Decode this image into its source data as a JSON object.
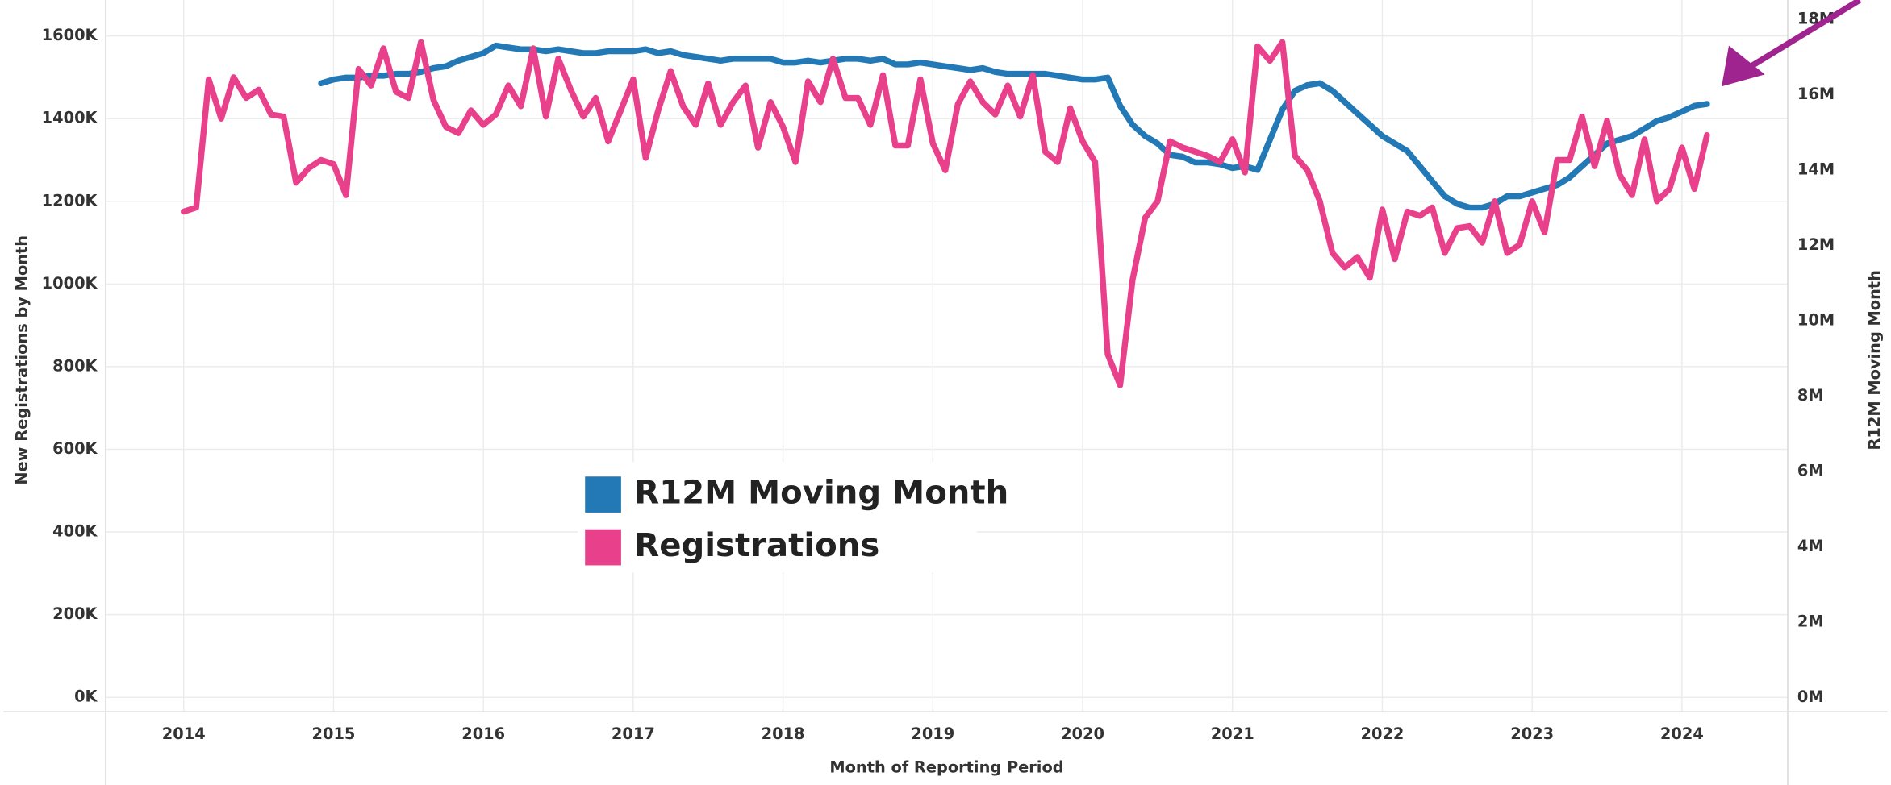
{
  "chart_data": {
    "type": "line",
    "x_label": "Month of Reporting Period",
    "y_label": "New Registrations by Month",
    "y2_label": "R12M Moving Month",
    "xlim": [
      2013.479,
      2024.706
    ],
    "xticks": [
      2014,
      2015,
      2016,
      2017,
      2018,
      2019,
      2020,
      2021,
      2022,
      2023,
      2024
    ],
    "ylim": [
      -35000,
      1687000
    ],
    "yticks": [
      {
        "value": 0,
        "label": "0K"
      },
      {
        "value": 200000,
        "label": "200K"
      },
      {
        "value": 400000,
        "label": "400K"
      },
      {
        "value": 600000,
        "label": "600K"
      },
      {
        "value": 800000,
        "label": "800K"
      },
      {
        "value": 1000000,
        "label": "1000K"
      },
      {
        "value": 1200000,
        "label": "1200K"
      },
      {
        "value": 1400000,
        "label": "1400K"
      },
      {
        "value": 1600000,
        "label": "1600K"
      }
    ],
    "y2lim": [
      -382000,
      18510000
    ],
    "y2ticks": [
      {
        "value": 0,
        "label": "0M"
      },
      {
        "value": 2000000,
        "label": "2M"
      },
      {
        "value": 4000000,
        "label": "4M"
      },
      {
        "value": 6000000,
        "label": "6M"
      },
      {
        "value": 8000000,
        "label": "8M"
      },
      {
        "value": 10000000,
        "label": "10M"
      },
      {
        "value": 12000000,
        "label": "12M"
      },
      {
        "value": 14000000,
        "label": "14M"
      },
      {
        "value": 16000000,
        "label": "16M"
      },
      {
        "value": 18000000,
        "label": "18M"
      }
    ],
    "grid": true,
    "x": [
      2014,
      2014.083,
      2014.167,
      2014.25,
      2014.333,
      2014.417,
      2014.5,
      2014.583,
      2014.667,
      2014.75,
      2014.833,
      2014.917,
      2015,
      2015.083,
      2015.167,
      2015.25,
      2015.333,
      2015.417,
      2015.5,
      2015.583,
      2015.667,
      2015.75,
      2015.833,
      2015.917,
      2016,
      2016.083,
      2016.167,
      2016.25,
      2016.333,
      2016.417,
      2016.5,
      2016.583,
      2016.667,
      2016.75,
      2016.833,
      2016.917,
      2017,
      2017.083,
      2017.167,
      2017.25,
      2017.333,
      2017.417,
      2017.5,
      2017.583,
      2017.667,
      2017.75,
      2017.833,
      2017.917,
      2018,
      2018.083,
      2018.167,
      2018.25,
      2018.333,
      2018.417,
      2018.5,
      2018.583,
      2018.667,
      2018.75,
      2018.833,
      2018.917,
      2019,
      2019.083,
      2019.167,
      2019.25,
      2019.333,
      2019.417,
      2019.5,
      2019.583,
      2019.667,
      2019.75,
      2019.833,
      2019.917,
      2020,
      2020.083,
      2020.167,
      2020.25,
      2020.333,
      2020.417,
      2020.5,
      2020.583,
      2020.667,
      2020.75,
      2020.833,
      2020.917,
      2021,
      2021.083,
      2021.167,
      2021.25,
      2021.333,
      2021.417,
      2021.5,
      2021.583,
      2021.667,
      2021.75,
      2021.833,
      2021.917,
      2022,
      2022.083,
      2022.167,
      2022.25,
      2022.333,
      2022.417,
      2022.5,
      2022.583,
      2022.667,
      2022.75,
      2022.833,
      2022.917,
      2023,
      2023.083,
      2023.167,
      2023.25,
      2023.333,
      2023.417,
      2023.5,
      2023.583,
      2023.667,
      2023.75,
      2023.833,
      2023.917,
      2024,
      2024.083,
      2024.167
    ],
    "series": [
      {
        "name": "R12M Moving Month",
        "color": "#2279b5",
        "axis": "y2",
        "values": [
          null,
          null,
          null,
          null,
          null,
          null,
          null,
          null,
          null,
          null,
          null,
          16300000,
          16400000,
          16450000,
          16450000,
          16500000,
          16500000,
          16550000,
          16550000,
          16600000,
          16700000,
          16750000,
          16900000,
          17000000,
          17100000,
          17300000,
          17250000,
          17200000,
          17200000,
          17150000,
          17200000,
          17150000,
          17100000,
          17100000,
          17150000,
          17150000,
          17150000,
          17200000,
          17100000,
          17150000,
          17050000,
          17000000,
          16950000,
          16900000,
          16950000,
          16950000,
          16950000,
          16950000,
          16850000,
          16850000,
          16900000,
          16850000,
          16900000,
          16950000,
          16950000,
          16900000,
          16950000,
          16800000,
          16800000,
          16850000,
          16800000,
          16750000,
          16700000,
          16650000,
          16700000,
          16600000,
          16550000,
          16550000,
          16550000,
          16550000,
          16500000,
          16450000,
          16400000,
          16400000,
          16450000,
          15700000,
          15200000,
          14900000,
          14700000,
          14400000,
          14350000,
          14200000,
          14200000,
          14150000,
          14050000,
          14100000,
          14000000,
          14800000,
          15600000,
          16100000,
          16250000,
          16300000,
          16100000,
          15800000,
          15500000,
          15200000,
          14900000,
          14700000,
          14500000,
          14100000,
          13700000,
          13300000,
          13100000,
          13000000,
          13000000,
          13100000,
          13300000,
          13300000,
          13400000,
          13500000,
          13600000,
          13800000,
          14100000,
          14400000,
          14700000,
          14800000,
          14900000,
          15100000,
          15300000,
          15400000,
          15550000,
          15700000,
          15750000
        ]
      },
      {
        "name": "Registrations",
        "color": "#e8408a",
        "values": [
          1175000,
          1185000,
          1495000,
          1400000,
          1500000,
          1450000,
          1470000,
          1410000,
          1405000,
          1245000,
          1280000,
          1300000,
          1290000,
          1215000,
          1520000,
          1480000,
          1570000,
          1465000,
          1450000,
          1585000,
          1445000,
          1380000,
          1365000,
          1420000,
          1385000,
          1410000,
          1480000,
          1430000,
          1570000,
          1405000,
          1545000,
          1470000,
          1405000,
          1450000,
          1345000,
          1420000,
          1495000,
          1305000,
          1420000,
          1515000,
          1430000,
          1385000,
          1485000,
          1385000,
          1440000,
          1480000,
          1330000,
          1440000,
          1380000,
          1295000,
          1490000,
          1440000,
          1545000,
          1450000,
          1450000,
          1385000,
          1505000,
          1335000,
          1335000,
          1495000,
          1340000,
          1275000,
          1435000,
          1490000,
          1440000,
          1410000,
          1480000,
          1405000,
          1505000,
          1320000,
          1295000,
          1425000,
          1345000,
          1295000,
          830000,
          755000,
          1010000,
          1160000,
          1200000,
          1345000,
          1330000,
          1320000,
          1310000,
          1295000,
          1350000,
          1270000,
          1575000,
          1540000,
          1585000,
          1310000,
          1275000,
          1200000,
          1075000,
          1040000,
          1065000,
          1015000,
          1180000,
          1060000,
          1175000,
          1165000,
          1185000,
          1075000,
          1135000,
          1140000,
          1100000,
          1200000,
          1075000,
          1095000,
          1200000,
          1125000,
          1300000,
          1300000,
          1405000,
          1285000,
          1395000,
          1265000,
          1215000,
          1350000,
          1200000,
          1230000,
          1330000,
          1230000,
          1360000
        ]
      }
    ]
  }
}
